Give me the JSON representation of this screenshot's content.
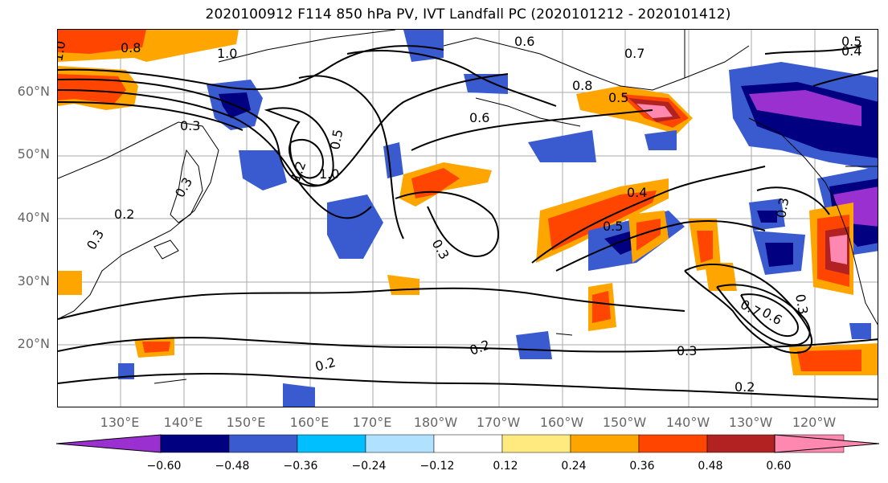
{
  "title": "2020100912 F114 850 hPa PV, IVT Landfall PC (2020101212 - 2020101412)",
  "lat_labels": [
    "60°N",
    "50°N",
    "40°N",
    "30°N",
    "20°N"
  ],
  "lon_labels": [
    "130°E",
    "140°E",
    "150°E",
    "160°E",
    "170°E",
    "180°W",
    "170°W",
    "160°W",
    "150°W",
    "140°W",
    "130°W",
    "120°W"
  ],
  "contour_labels": [
    "1.0",
    "0.8",
    "1.0",
    "0.6",
    "0.7",
    "0.4",
    "0.5",
    "0.8",
    "0.5",
    "0.6",
    "0.3",
    "0.5",
    "1.0",
    "1.2",
    "0.4",
    "0.5",
    "0.3",
    "0.2",
    "0.3",
    "0.3",
    "0.3",
    "0.7",
    "0.6",
    "0.3",
    "0.2",
    "0.2",
    "0.3",
    "0.2"
  ],
  "colorbar": {
    "ticks": [
      "−0.60",
      "−0.48",
      "−0.36",
      "−0.24",
      "−0.12",
      "0.12",
      "0.24",
      "0.36",
      "0.48",
      "0.60"
    ],
    "colors": [
      "#9b30d0",
      "#000080",
      "#3a5bd0",
      "#00bfff",
      "#b0e2ff",
      "#ffffff",
      "#ffea80",
      "#ffa500",
      "#ff4500",
      "#b22222",
      "#ff88b0",
      "#ff88b0"
    ]
  },
  "palette": {
    "purple": "#9b30d0",
    "navy": "#000080",
    "royal": "#3a5bd0",
    "sky": "#00bfff",
    "lightblue": "#b0e2ff",
    "yellow": "#ffea80",
    "orange": "#ffa500",
    "redorange": "#ff4500",
    "firebrick": "#b22222",
    "pink": "#ff88b0"
  }
}
